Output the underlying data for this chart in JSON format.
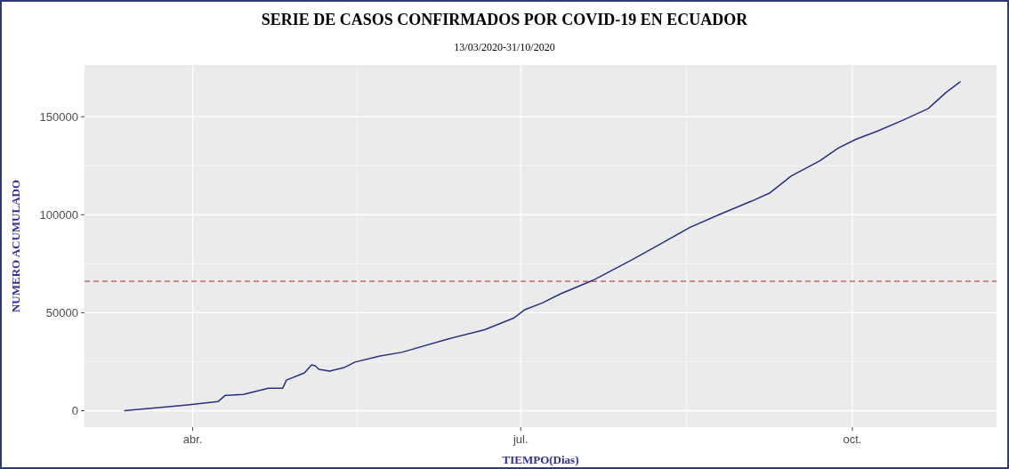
{
  "chart_data": {
    "type": "line",
    "title": "SERIE DE CASOS CONFIRMADOS POR COVID-19 EN ECUADOR",
    "subtitle": "13/03/2020-31/10/2020",
    "xlabel": "TIEMPO(Dias)",
    "ylabel": "NUMERO ACUMULADO",
    "x": [
      "2020-03-13",
      "2020-03-30",
      "2020-04-08",
      "2020-04-10",
      "2020-04-15",
      "2020-04-22",
      "2020-04-26",
      "2020-04-27",
      "2020-05-02",
      "2020-05-04",
      "2020-05-05",
      "2020-05-06",
      "2020-05-09",
      "2020-05-13",
      "2020-05-16",
      "2020-05-23",
      "2020-05-29",
      "2020-06-11",
      "2020-06-21",
      "2020-06-29",
      "2020-07-02",
      "2020-07-07",
      "2020-07-12",
      "2020-07-21",
      "2020-08-01",
      "2020-08-09",
      "2020-08-17",
      "2020-08-25",
      "2020-09-03",
      "2020-09-08",
      "2020-09-14",
      "2020-09-22",
      "2020-09-27",
      "2020-10-02",
      "2020-10-08",
      "2020-10-15",
      "2020-10-22",
      "2020-10-27",
      "2020-10-31"
    ],
    "series": [
      {
        "color": "#2e2e7e",
        "values": [
          0,
          2800,
          4600,
          7800,
          8300,
          11500,
          11500,
          15600,
          19300,
          23400,
          22900,
          21100,
          20200,
          22000,
          24800,
          27900,
          29800,
          36700,
          41300,
          47200,
          51400,
          55000,
          59600,
          66500,
          77100,
          85300,
          93600,
          100000,
          106900,
          111000,
          119700,
          127500,
          133900,
          138500,
          142700,
          148200,
          154100,
          162400,
          167900
        ]
      }
    ],
    "xlim": [
      "2020-03-02",
      "2020-11-10"
    ],
    "xticks": [
      {
        "value": "2020-04-01",
        "label": "abr."
      },
      {
        "value": "2020-07-01",
        "label": "jul."
      },
      {
        "value": "2020-10-01",
        "label": "oct."
      }
    ],
    "ylim": [
      -8400,
      176400
    ],
    "yticks": [
      0,
      50000,
      100000,
      150000
    ],
    "grid": true,
    "marker": "none",
    "line_style": "solid",
    "ref_lines": [
      {
        "axis": "y",
        "value": 66000,
        "color": "#c0504d",
        "line_style": "dashed"
      }
    ]
  }
}
